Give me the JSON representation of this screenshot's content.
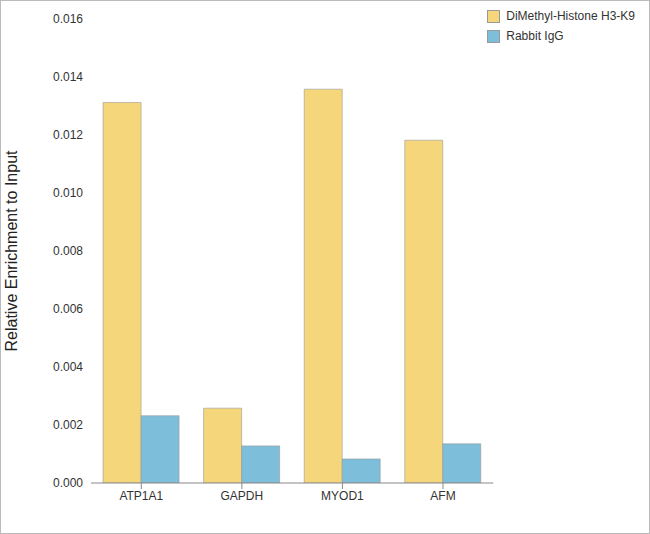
{
  "chart_data": {
    "type": "bar",
    "y_label": "Relative Enrichment to Input",
    "categories": [
      "ATP1A1",
      "GAPDH",
      "MYOD1",
      "AFM"
    ],
    "series": [
      {
        "name": "DiMethyl-Histone H3-K9",
        "color": "#f5d67a",
        "values": [
          0.01312,
          0.00258,
          0.01358,
          0.01182
        ]
      },
      {
        "name": "Rabbit IgG",
        "color": "#7dbedb",
        "values": [
          0.00232,
          0.00128,
          0.00083,
          0.00135
        ]
      }
    ],
    "ylim": [
      0,
      0.016
    ],
    "yticks": [
      {
        "value": 0,
        "label": "0.000"
      },
      {
        "value": 0.002,
        "label": "0.002"
      },
      {
        "value": 0.004,
        "label": "0.004"
      },
      {
        "value": 0.006,
        "label": "0.006"
      },
      {
        "value": 0.008,
        "label": "0.008"
      },
      {
        "value": 0.01,
        "label": "0.010"
      },
      {
        "value": 0.012,
        "label": "0.012"
      },
      {
        "value": 0.014,
        "label": "0.014"
      },
      {
        "value": 0.016,
        "label": "0.016"
      }
    ],
    "grid": false,
    "legend": "top-right"
  }
}
